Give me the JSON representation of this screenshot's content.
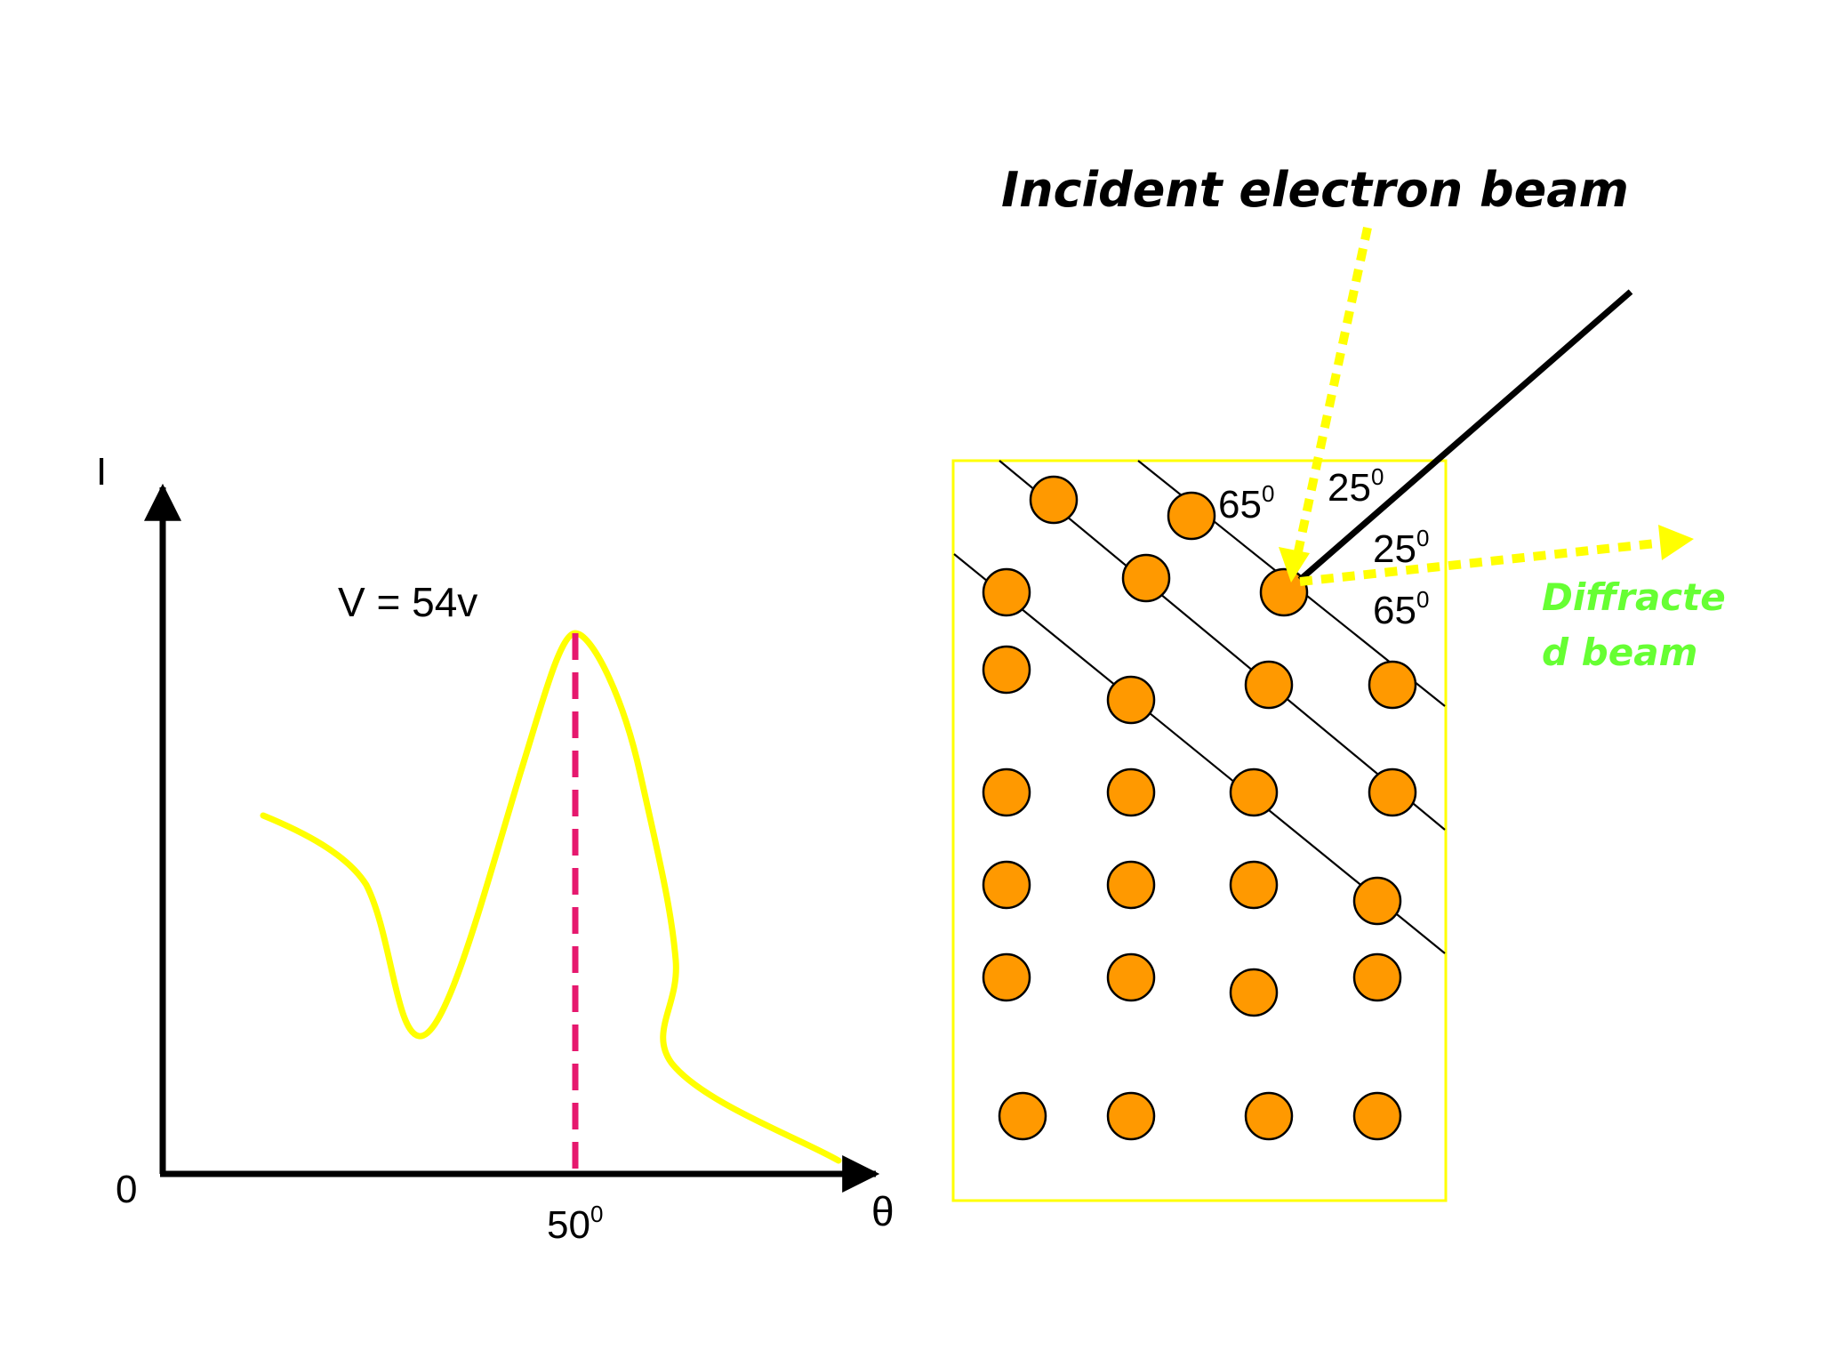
{
  "graph": {
    "y_axis_label": "I",
    "x_axis_label": "θ",
    "origin_label": "0",
    "voltage_label": "V = 54v",
    "peak_label": {
      "base": "50",
      "sup": "0"
    },
    "colors": {
      "curve": "#ffff00",
      "peak_line": "#e6186e",
      "axis": "#000000"
    }
  },
  "crystal": {
    "title": "Incident  electron beam",
    "diffracted_label_line1": "Diffracte",
    "diffracted_label_line2": "d beam",
    "angles": [
      {
        "base": "65",
        "sup": "0"
      },
      {
        "base": "25",
        "sup": "0"
      },
      {
        "base": "25",
        "sup": "0"
      },
      {
        "base": "65",
        "sup": "0"
      }
    ],
    "colors": {
      "atom_fill": "#ff9900",
      "atom_stroke": "#000000",
      "border": "#ffff00",
      "beam": "#ffff00",
      "diffracted_text": "#66ff33",
      "detector_line": "#000000"
    }
  }
}
